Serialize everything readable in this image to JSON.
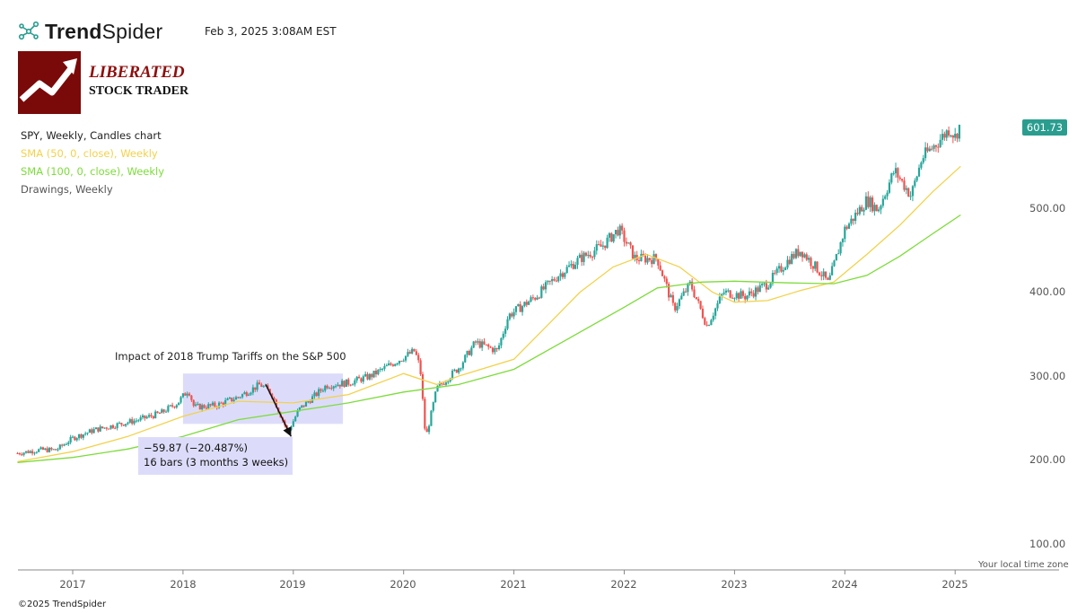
{
  "header": {
    "brand_name_bold": "Trend",
    "brand_name_light": "Spider",
    "timestamp": "Feb 3, 2025 3:08AM EST"
  },
  "logo": {
    "title": "LIBERATED",
    "subtitle": "STOCK TRADER"
  },
  "legend": {
    "main": "SPY, Weekly, Candles chart",
    "sma50": "SMA (50, 0, close), Weekly",
    "sma100": "SMA (100, 0, close), Weekly",
    "drawings": "Drawings, Weekly"
  },
  "footer": "©2025 TrendSpider",
  "colors": {
    "up": "#26a69a",
    "down": "#ef5350",
    "sma50": "#f2d24b",
    "sma100": "#7ddc3a",
    "highlight": "#dcdcfa",
    "badge": "#2a9d8f"
  },
  "chart_data": {
    "type": "candlestick",
    "symbol": "SPY",
    "timeframe": "Weekly",
    "last_price_label": "601.73",
    "y_ticks": [
      "500.00",
      "400.00",
      "300.00",
      "200.00",
      "100.00"
    ],
    "y_tick_values": [
      500,
      400,
      300,
      200,
      100
    ],
    "x_ticks": [
      "2017",
      "2018",
      "2019",
      "2020",
      "2021",
      "2022",
      "2023",
      "2024",
      "2025"
    ],
    "x_tick_values": [
      2017,
      2018,
      2019,
      2020,
      2021,
      2022,
      2023,
      2024,
      2025
    ],
    "xlim": [
      2016.5,
      2025.3
    ],
    "ylim": [
      68,
      588
    ],
    "time_zone_label": "Your local time zone",
    "close_series": [
      [
        2016.5,
        208
      ],
      [
        2016.7,
        212
      ],
      [
        2016.85,
        212
      ],
      [
        2017.0,
        226
      ],
      [
        2017.2,
        236
      ],
      [
        2017.4,
        242
      ],
      [
        2017.6,
        248
      ],
      [
        2017.8,
        256
      ],
      [
        2017.95,
        268
      ],
      [
        2018.05,
        284
      ],
      [
        2018.1,
        263
      ],
      [
        2018.3,
        265
      ],
      [
        2018.5,
        275
      ],
      [
        2018.7,
        290
      ],
      [
        2018.8,
        280
      ],
      [
        2018.95,
        233
      ],
      [
        2019.05,
        260
      ],
      [
        2019.3,
        289
      ],
      [
        2019.5,
        292
      ],
      [
        2019.7,
        300
      ],
      [
        2019.9,
        315
      ],
      [
        2020.1,
        330
      ],
      [
        2020.15,
        310
      ],
      [
        2020.2,
        225
      ],
      [
        2020.3,
        285
      ],
      [
        2020.5,
        310
      ],
      [
        2020.65,
        340
      ],
      [
        2020.85,
        330
      ],
      [
        2020.95,
        372
      ],
      [
        2021.2,
        395
      ],
      [
        2021.4,
        420
      ],
      [
        2021.6,
        440
      ],
      [
        2021.8,
        455
      ],
      [
        2021.95,
        475
      ],
      [
        2022.1,
        440
      ],
      [
        2022.3,
        440
      ],
      [
        2022.45,
        380
      ],
      [
        2022.6,
        410
      ],
      [
        2022.75,
        360
      ],
      [
        2022.9,
        400
      ],
      [
        2023.1,
        395
      ],
      [
        2023.3,
        410
      ],
      [
        2023.5,
        440
      ],
      [
        2023.6,
        450
      ],
      [
        2023.8,
        420
      ],
      [
        2023.85,
        410
      ],
      [
        2024.0,
        475
      ],
      [
        2024.2,
        510
      ],
      [
        2024.3,
        498
      ],
      [
        2024.45,
        545
      ],
      [
        2024.6,
        515
      ],
      [
        2024.7,
        560
      ],
      [
        2024.85,
        580
      ],
      [
        2024.95,
        595
      ],
      [
        2025.0,
        585
      ],
      [
        2025.05,
        601.73
      ]
    ],
    "sma50_series": [
      [
        2016.5,
        198
      ],
      [
        2017.0,
        210
      ],
      [
        2017.5,
        228
      ],
      [
        2018.0,
        252
      ],
      [
        2018.5,
        270
      ],
      [
        2019.0,
        268
      ],
      [
        2019.5,
        278
      ],
      [
        2020.0,
        303
      ],
      [
        2020.3,
        290
      ],
      [
        2020.5,
        300
      ],
      [
        2021.0,
        320
      ],
      [
        2021.3,
        360
      ],
      [
        2021.6,
        400
      ],
      [
        2021.9,
        430
      ],
      [
        2022.2,
        445
      ],
      [
        2022.5,
        430
      ],
      [
        2022.8,
        400
      ],
      [
        2023.0,
        388
      ],
      [
        2023.3,
        390
      ],
      [
        2023.6,
        402
      ],
      [
        2023.9,
        412
      ],
      [
        2024.2,
        445
      ],
      [
        2024.5,
        480
      ],
      [
        2024.8,
        520
      ],
      [
        2025.05,
        550
      ]
    ],
    "sma100_series": [
      [
        2016.5,
        197
      ],
      [
        2017.0,
        203
      ],
      [
        2017.5,
        213
      ],
      [
        2018.0,
        228
      ],
      [
        2018.5,
        248
      ],
      [
        2019.0,
        258
      ],
      [
        2019.5,
        268
      ],
      [
        2020.0,
        281
      ],
      [
        2020.5,
        290
      ],
      [
        2021.0,
        308
      ],
      [
        2021.5,
        345
      ],
      [
        2022.0,
        382
      ],
      [
        2022.3,
        405
      ],
      [
        2022.7,
        412
      ],
      [
        2023.0,
        413
      ],
      [
        2023.5,
        411
      ],
      [
        2023.9,
        410
      ],
      [
        2024.2,
        420
      ],
      [
        2024.5,
        443
      ],
      [
        2024.8,
        470
      ],
      [
        2025.05,
        492
      ]
    ]
  },
  "annotations": {
    "tariff_title": "Impact of 2018 Trump Tariffs on the S&P 500",
    "highlight_range": [
      2018.0,
      2019.45
    ],
    "arrow": {
      "from": [
        2018.75,
        290
      ],
      "to": [
        2018.98,
        228
      ]
    },
    "measure_line1": "−59.87 (−20.487%)",
    "measure_line2": "16 bars (3 months 3 weeks)"
  }
}
